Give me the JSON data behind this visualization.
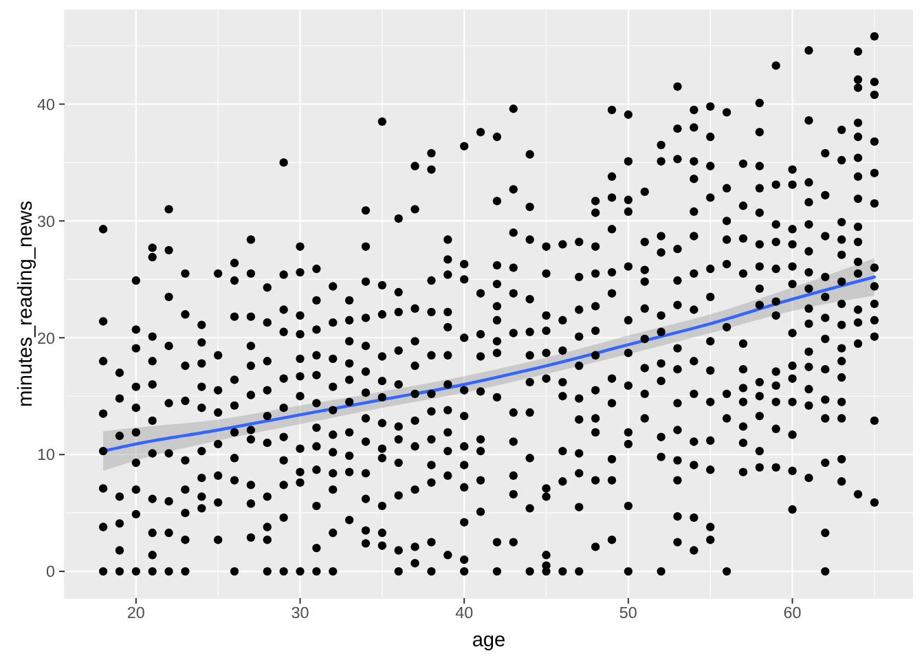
{
  "chart_data": {
    "type": "scatter",
    "xlabel": "age",
    "ylabel": "minutes_reading_news",
    "xlim": [
      15.65,
      67.35
    ],
    "ylim": [
      -2.29,
      48.09
    ],
    "xticks": [
      20,
      30,
      40,
      50,
      60
    ],
    "yticks": [
      0,
      10,
      20,
      30,
      40
    ],
    "grid": true,
    "series": [
      {
        "color": "#000000",
        "marker": "circle",
        "x": [
          18,
          18,
          18,
          18,
          18,
          18,
          18,
          18,
          19,
          19,
          19,
          19,
          19,
          19,
          19,
          20,
          20,
          20,
          20,
          20,
          20,
          20,
          20,
          20,
          20,
          21,
          21,
          21,
          21,
          21,
          21,
          21,
          21,
          21,
          21,
          21,
          22,
          22,
          22,
          22,
          22,
          22,
          22,
          22,
          22,
          23,
          23,
          23,
          23,
          23,
          23,
          23,
          23,
          23,
          24,
          24,
          24,
          24,
          24,
          24,
          24,
          24,
          24,
          25,
          25,
          25,
          25,
          25,
          25,
          25,
          25,
          26,
          26,
          26,
          26,
          26,
          26,
          26,
          26,
          26,
          27,
          27,
          27,
          27,
          27,
          27,
          27,
          27,
          27,
          27,
          27,
          28,
          28,
          28,
          28,
          28,
          28,
          28,
          28,
          28,
          28,
          29,
          29,
          29,
          29,
          29,
          29,
          29,
          29,
          29,
          29,
          29,
          30,
          30,
          30,
          30,
          30,
          30,
          30,
          30,
          30,
          30,
          30,
          31,
          31,
          31,
          31,
          31,
          31,
          31,
          31,
          31,
          31,
          31,
          31,
          32,
          32,
          32,
          32,
          32,
          32,
          32,
          32,
          32,
          32,
          32,
          33,
          33,
          33,
          33,
          33,
          33,
          33,
          33,
          33,
          33,
          34,
          34,
          34,
          34,
          34,
          34,
          34,
          34,
          34,
          34,
          34,
          34,
          34,
          35,
          35,
          35,
          35,
          35,
          35,
          35,
          35,
          35,
          35,
          35,
          35,
          36,
          36,
          36,
          36,
          36,
          36,
          36,
          36,
          36,
          36,
          36,
          37,
          37,
          37,
          37,
          37,
          37,
          37,
          37,
          37,
          37,
          37,
          38,
          38,
          38,
          38,
          38,
          38,
          38,
          38,
          38,
          38,
          38,
          38,
          39,
          39,
          39,
          39,
          39,
          39,
          39,
          39,
          39,
          39,
          39,
          39,
          40,
          40,
          40,
          40,
          40,
          40,
          40,
          40,
          40,
          40,
          40,
          40,
          41,
          41,
          41,
          41,
          41,
          41,
          41,
          41,
          41,
          42,
          42,
          42,
          42,
          42,
          42,
          42,
          42,
          42,
          42,
          42,
          43,
          43,
          43,
          43,
          43,
          43,
          43,
          43,
          43,
          43,
          43,
          44,
          44,
          44,
          44,
          44,
          44,
          44,
          44,
          44,
          44,
          44,
          45,
          45,
          45,
          45,
          45,
          45,
          45,
          45,
          45,
          45,
          45,
          46,
          46,
          46,
          46,
          46,
          46,
          46,
          46,
          47,
          47,
          47,
          47,
          47,
          47,
          47,
          47,
          47,
          47,
          47,
          48,
          48,
          48,
          48,
          48,
          48,
          48,
          48,
          48,
          48,
          48,
          48,
          49,
          49,
          49,
          49,
          49,
          49,
          49,
          49,
          49,
          49,
          49,
          50,
          50,
          50,
          50,
          50,
          50,
          50,
          50,
          50,
          50,
          50,
          50,
          51,
          51,
          51,
          51,
          51,
          51,
          51,
          51,
          51,
          52,
          52,
          52,
          52,
          52,
          52,
          52,
          52,
          52,
          52,
          52,
          53,
          53,
          53,
          53,
          53,
          53,
          53,
          53,
          53,
          53,
          53,
          53,
          53,
          53,
          54,
          54,
          54,
          54,
          54,
          54,
          54,
          54,
          54,
          54,
          54,
          54,
          54,
          54,
          55,
          55,
          55,
          55,
          55,
          55,
          55,
          55,
          55,
          55,
          55,
          55,
          55,
          56,
          56,
          56,
          56,
          56,
          56,
          56,
          56,
          56,
          57,
          57,
          57,
          57,
          57,
          57,
          57,
          57,
          57,
          57,
          57,
          58,
          58,
          58,
          58,
          58,
          58,
          58,
          58,
          58,
          58,
          58,
          58,
          58,
          58,
          59,
          59,
          59,
          59,
          59,
          59,
          59,
          59,
          59,
          59,
          59,
          59,
          60,
          60,
          60,
          60,
          60,
          60,
          60,
          60,
          60,
          60,
          60,
          60,
          60,
          61,
          61,
          61,
          61,
          61,
          61,
          61,
          61,
          61,
          61,
          61,
          61,
          61,
          61,
          61,
          62,
          62,
          62,
          62,
          62,
          62,
          62,
          62,
          62,
          62,
          62,
          62,
          62,
          63,
          63,
          63,
          63,
          63,
          63,
          63,
          63,
          63,
          63,
          63,
          63,
          63,
          63,
          63,
          64,
          64,
          64,
          64,
          64,
          64,
          64,
          64,
          64,
          64,
          64,
          64,
          64,
          64,
          64,
          64,
          65,
          65,
          65,
          65,
          65,
          65,
          65,
          65,
          65,
          65,
          65,
          65,
          65
        ],
        "values": [
          29.3,
          21.4,
          18.0,
          13.5,
          10.3,
          7.1,
          3.8,
          0,
          17.0,
          14.8,
          11.6,
          6.4,
          4.1,
          1.8,
          0,
          24.9,
          20.7,
          19.1,
          15.8,
          14.0,
          11.9,
          9.3,
          7.0,
          4.9,
          0,
          27.7,
          26.9,
          20.1,
          18.0,
          16.0,
          12.9,
          10.1,
          6.2,
          3.3,
          1.4,
          0,
          31.0,
          27.5,
          23.5,
          19.3,
          14.4,
          10.1,
          6.0,
          3.3,
          0,
          25.5,
          22.0,
          17.6,
          14.6,
          9.5,
          7.0,
          5.0,
          2.7,
          0,
          21.1,
          19.6,
          17.8,
          15.8,
          14.0,
          10.3,
          8.0,
          6.4,
          5.4,
          25.5,
          18.5,
          15.5,
          13.6,
          10.9,
          8.2,
          5.9,
          2.7,
          26.4,
          24.9,
          21.8,
          16.4,
          14.2,
          11.9,
          9.7,
          7.8,
          0,
          28.4,
          25.5,
          21.8,
          19.3,
          17.6,
          15.1,
          12.1,
          11.3,
          7.4,
          5.8,
          2.9,
          24.3,
          21.3,
          18.0,
          15.5,
          13.3,
          11.0,
          6.4,
          3.8,
          2.7,
          0,
          35.0,
          25.4,
          22.4,
          20.5,
          16.5,
          14.0,
          11.5,
          9.5,
          7.4,
          4.6,
          0,
          27.8,
          25.6,
          21.9,
          20.3,
          18.2,
          16.7,
          15.0,
          10.5,
          8.5,
          7.6,
          0,
          25.9,
          23.2,
          20.7,
          18.5,
          16.8,
          14.4,
          12.3,
          10.7,
          8.7,
          5.6,
          2.0,
          0,
          24.4,
          21.3,
          18.2,
          15.8,
          13.8,
          11.7,
          10.2,
          8.4,
          7.0,
          3.3,
          0,
          23.2,
          21.5,
          19.7,
          17.8,
          16.4,
          14.5,
          11.9,
          9.9,
          8.5,
          4.4,
          30.9,
          27.8,
          24.8,
          21.7,
          19.3,
          17.1,
          15.3,
          13.1,
          11.1,
          8.4,
          6.2,
          3.5,
          2.4,
          38.5,
          24.5,
          22.0,
          18.4,
          16.3,
          14.9,
          12.7,
          10.5,
          9.7,
          5.6,
          3.3,
          2.2,
          30.2,
          23.9,
          22.2,
          18.9,
          16.0,
          12.4,
          11.3,
          9.3,
          6.5,
          1.8,
          0,
          34.7,
          31.0,
          22.5,
          19.7,
          17.6,
          15.2,
          12.9,
          10.7,
          7.0,
          2.1,
          0.7,
          35.8,
          34.4,
          24.9,
          22.2,
          18.5,
          15.2,
          13.7,
          11.3,
          9.1,
          7.6,
          2.5,
          0,
          28.4,
          26.7,
          25.4,
          22.2,
          20.9,
          18.5,
          16.0,
          13.8,
          11.9,
          10.3,
          8.2,
          1.4,
          36.4,
          26.3,
          25.0,
          20.0,
          15.5,
          13.3,
          10.7,
          9.1,
          7.2,
          4.2,
          1.0,
          0,
          37.6,
          23.8,
          20.3,
          18.4,
          15.4,
          11.3,
          10.3,
          7.8,
          5.1,
          37.2,
          31.7,
          26.2,
          24.6,
          22.7,
          21.5,
          19.7,
          18.7,
          14.9,
          2.5,
          0,
          39.6,
          32.7,
          29.0,
          26.0,
          23.8,
          20.4,
          13.6,
          11.1,
          8.2,
          6.6,
          2.5,
          35.7,
          31.2,
          28.4,
          23.3,
          20.5,
          18.5,
          16.2,
          13.6,
          9.7,
          5.4,
          0,
          27.8,
          25.5,
          21.9,
          20.6,
          18.7,
          16.5,
          7.1,
          6.4,
          1.4,
          0.5,
          0,
          28.0,
          21.5,
          18.9,
          16.2,
          15.0,
          10.3,
          7.7,
          0,
          28.2,
          25.2,
          22.4,
          20.1,
          17.6,
          14.8,
          13.0,
          10.1,
          8.4,
          5.5,
          0,
          31.7,
          30.7,
          27.8,
          25.5,
          22.7,
          20.6,
          18.5,
          15.5,
          13.1,
          11.9,
          7.8,
          2.1,
          39.5,
          33.8,
          32.0,
          29.3,
          25.6,
          23.8,
          16.5,
          14.4,
          9.6,
          7.8,
          2.7,
          39.1,
          35.1,
          31.8,
          30.8,
          26.1,
          21.5,
          18.7,
          15.9,
          11.9,
          10.9,
          5.6,
          0,
          32.5,
          28.2,
          25.8,
          24.8,
          22.5,
          19.9,
          17.4,
          15.2,
          13.1,
          36.5,
          35.1,
          28.7,
          27.3,
          21.9,
          20.5,
          17.8,
          16.3,
          11.5,
          9.8,
          0,
          41.5,
          37.9,
          35.3,
          27.6,
          24.9,
          22.8,
          19.1,
          17.3,
          14.4,
          12.1,
          9.5,
          7.8,
          4.7,
          2.5,
          39.5,
          38.0,
          35.1,
          33.6,
          30.8,
          28.7,
          25.5,
          22.4,
          18.0,
          15.2,
          11.1,
          9.1,
          4.6,
          1.8,
          39.8,
          37.2,
          34.7,
          32.0,
          25.9,
          23.5,
          19.7,
          17.2,
          14.5,
          11.2,
          8.7,
          3.8,
          2.7,
          39.3,
          32.8,
          30.0,
          28.4,
          26.3,
          20.9,
          15.2,
          13.1,
          0,
          34.9,
          31.3,
          28.5,
          25.5,
          19.5,
          17.3,
          15.7,
          14.5,
          12.4,
          11.0,
          8.5,
          40.1,
          37.6,
          34.7,
          32.8,
          30.7,
          28.0,
          26.1,
          24.2,
          22.8,
          16.2,
          15.0,
          13.3,
          10.3,
          8.9,
          43.3,
          33.1,
          29.7,
          28.2,
          25.9,
          23.1,
          21.9,
          17.1,
          15.9,
          14.5,
          12.2,
          8.9,
          34.4,
          33.1,
          29.3,
          28.0,
          26.1,
          24.6,
          20.4,
          17.6,
          16.5,
          14.5,
          11.7,
          8.6,
          5.3,
          44.6,
          38.6,
          33.3,
          31.6,
          29.7,
          27.4,
          25.6,
          24.2,
          22.5,
          21.2,
          18.8,
          17.5,
          15.6,
          14.2,
          8.0,
          35.8,
          32.2,
          28.7,
          25.2,
          23.5,
          21.7,
          19.9,
          17.3,
          14.7,
          13.1,
          9.3,
          3.3,
          0,
          37.8,
          35.2,
          29.9,
          28.4,
          27.1,
          24.8,
          22.9,
          21.1,
          19.1,
          18.0,
          16.6,
          14.5,
          13.1,
          9.6,
          7.7,
          44.5,
          42.1,
          41.4,
          38.4,
          37.2,
          35.4,
          33.8,
          31.9,
          29.5,
          28.2,
          26.5,
          25.5,
          22.4,
          21.3,
          19.5,
          6.6,
          45.8,
          41.9,
          40.8,
          36.8,
          34.1,
          31.5,
          26.0,
          24.4,
          22.9,
          21.5,
          20.1,
          12.9,
          5.9
        ]
      },
      {
        "type": "line",
        "color": "#3366ff",
        "x": [
          18,
          20,
          25,
          30,
          35,
          40,
          45,
          50,
          55,
          60,
          65
        ],
        "values": [
          10.3,
          10.9,
          12.1,
          13.4,
          14.7,
          16.0,
          17.6,
          19.4,
          21.2,
          23.3,
          25.2
        ],
        "lower": [
          8.6,
          9.5,
          11.2,
          12.6,
          14.0,
          15.3,
          16.9,
          18.6,
          20.4,
          22.3,
          23.6
        ],
        "upper": [
          12.0,
          12.3,
          13.0,
          14.2,
          15.4,
          16.7,
          18.3,
          20.2,
          22.0,
          24.3,
          26.8
        ]
      }
    ]
  }
}
